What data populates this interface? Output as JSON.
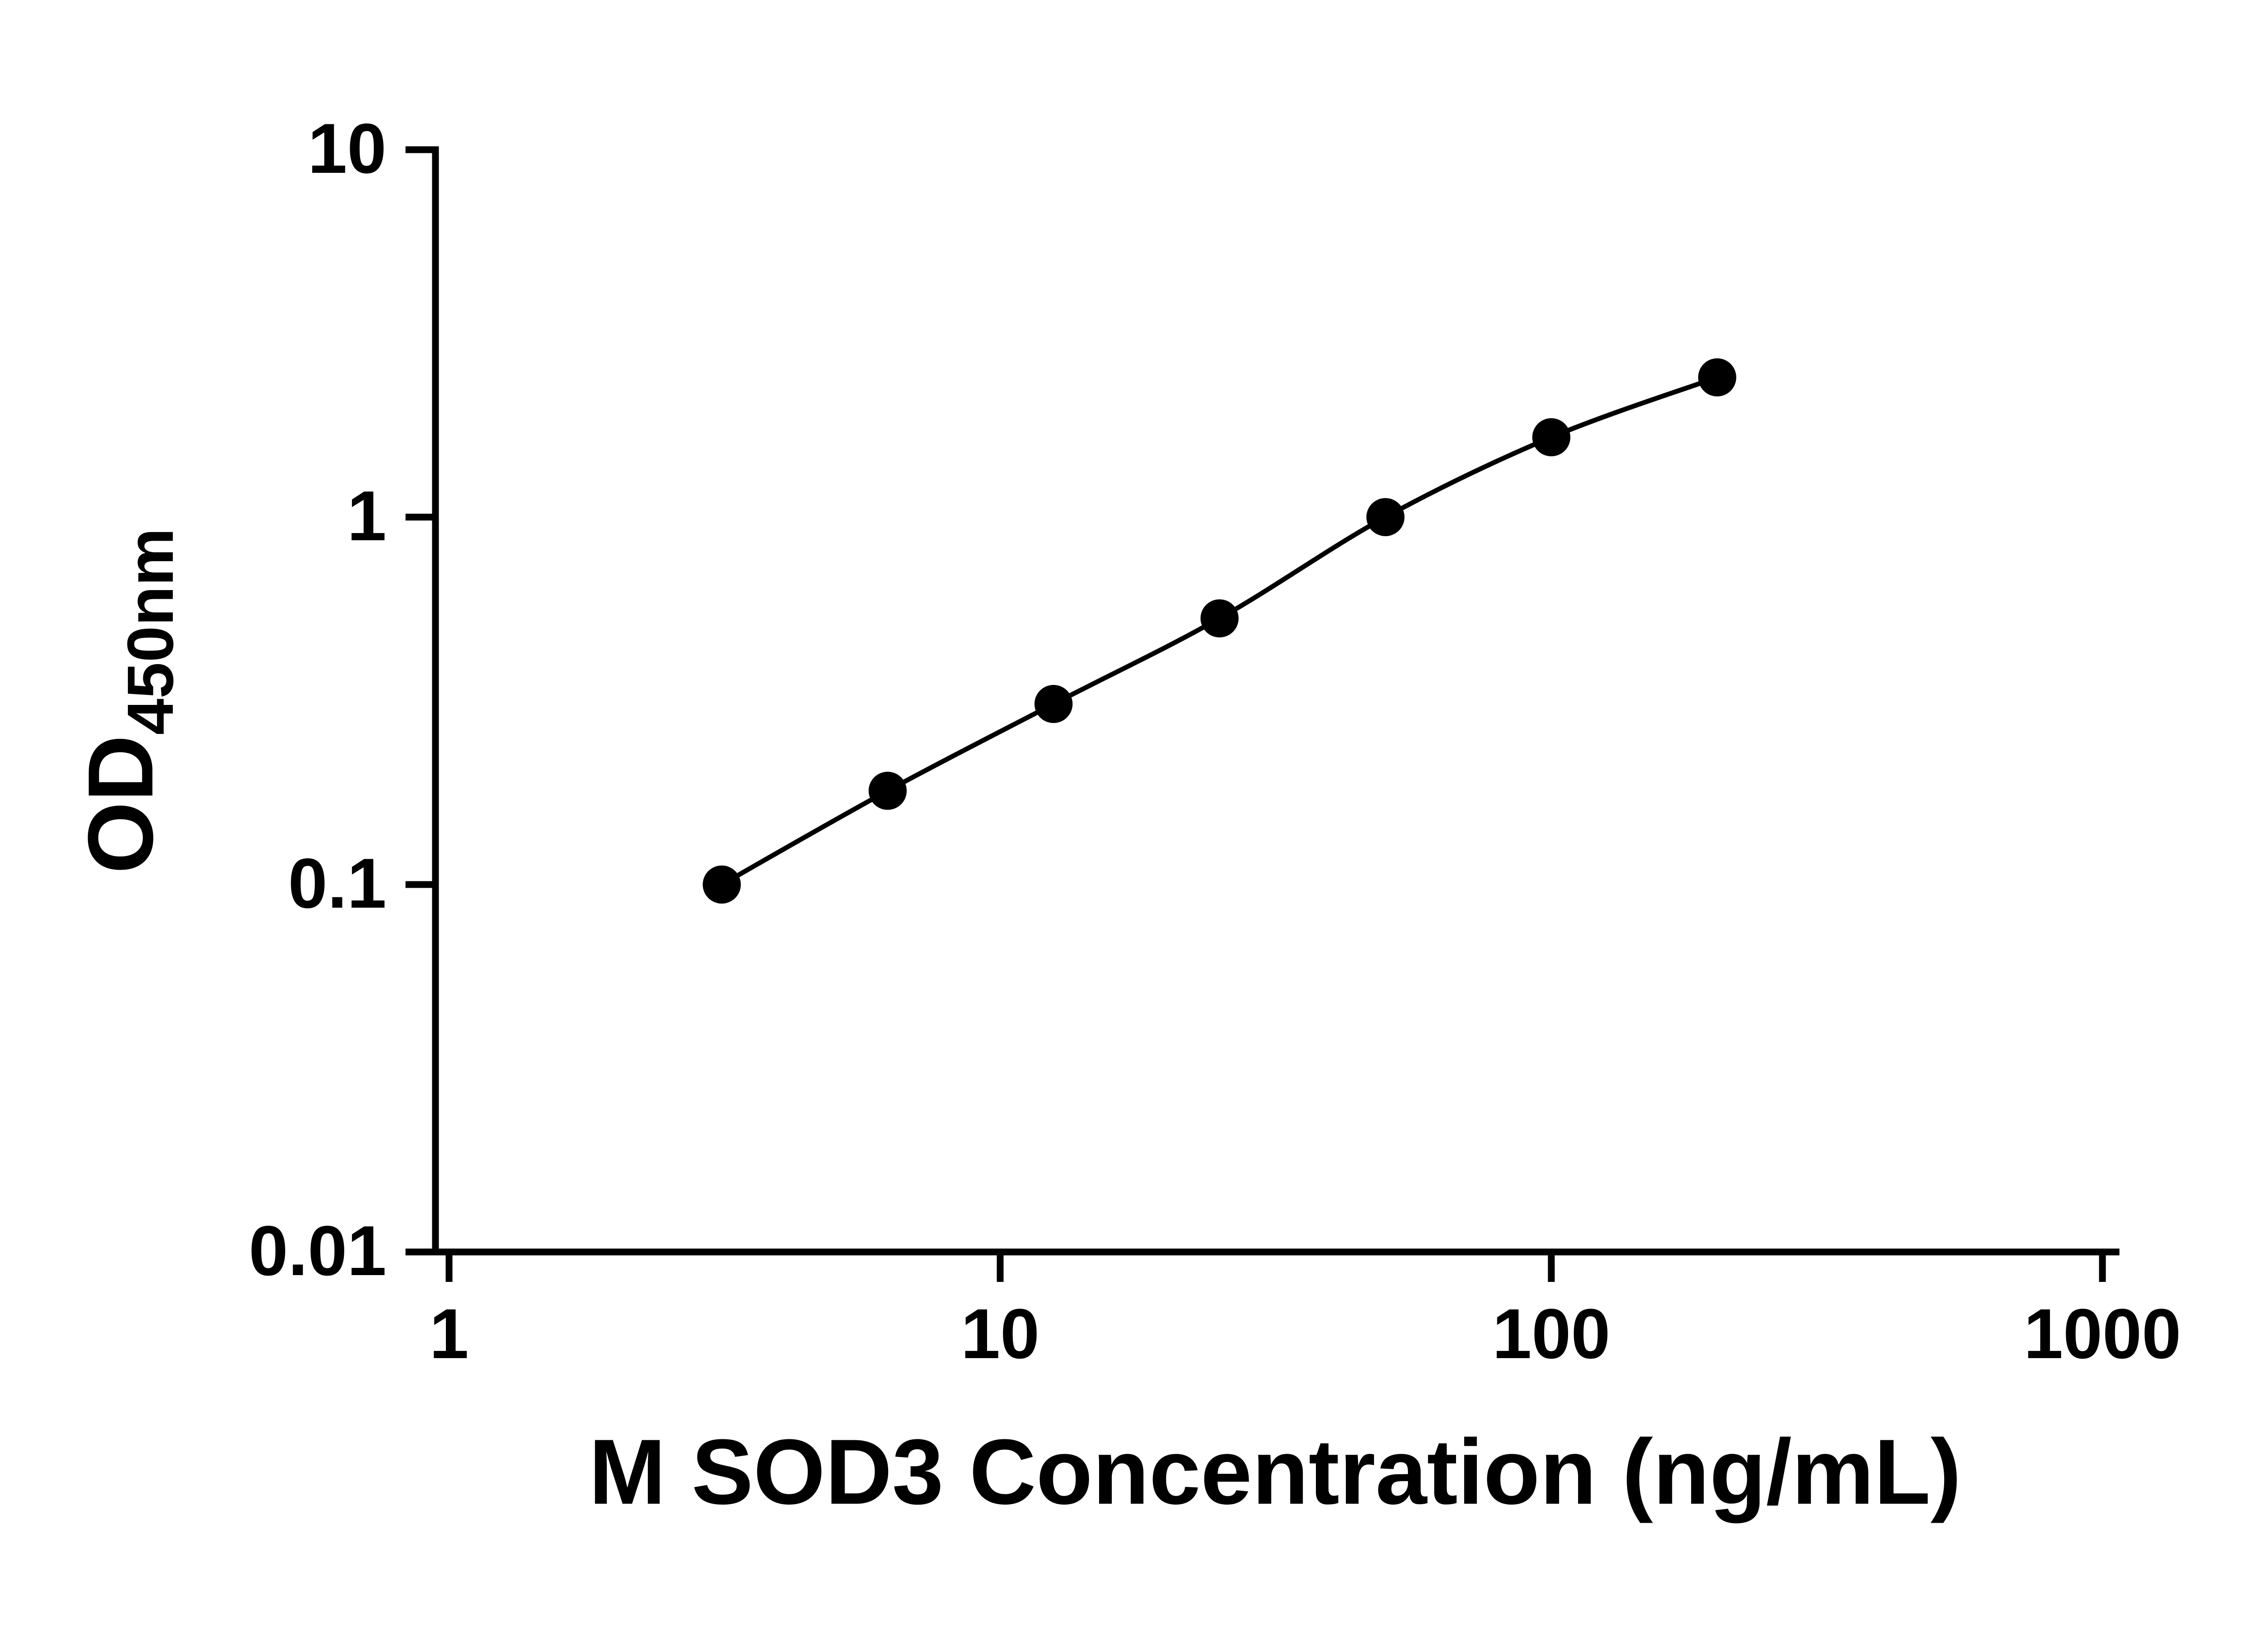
{
  "chart_data": {
    "type": "scatter",
    "title": "",
    "xlabel": "M SOD3 Concentration (ng/mL)",
    "ylabel": "OD450nm",
    "ylabel_main": "OD",
    "ylabel_sub": "450nm",
    "x_scale": "log10",
    "y_scale": "log10",
    "xlim": [
      1,
      1000
    ],
    "ylim": [
      0.01,
      10
    ],
    "x_ticks": [
      1,
      10,
      100,
      1000
    ],
    "x_tick_labels": [
      "1",
      "10",
      "100",
      "1000"
    ],
    "y_ticks": [
      0.01,
      0.1,
      1,
      10
    ],
    "y_tick_labels": [
      "0.01",
      "0.1",
      "1",
      "10"
    ],
    "grid": false,
    "legend": false,
    "series": [
      {
        "x": [
          3.125,
          6.25,
          12.5,
          25,
          50,
          100,
          200
        ],
        "y": [
          0.1,
          0.18,
          0.31,
          0.53,
          1.0,
          1.65,
          2.4
        ],
        "marker": "circle",
        "marker_color": "#000000",
        "line_color": "#000000"
      }
    ],
    "colors": {
      "axis": "#000000",
      "text": "#000000",
      "background": "#ffffff"
    }
  }
}
